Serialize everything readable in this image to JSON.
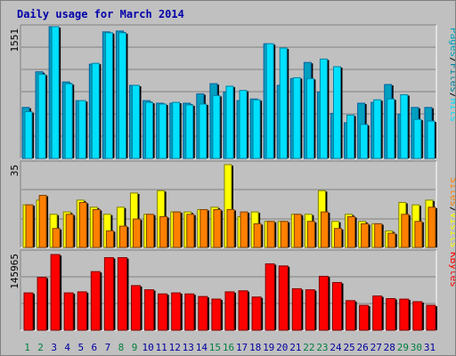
{
  "title": "Daily usage for March 2014",
  "colors": {
    "pages": "#00a0c0",
    "pages_edge": "#0060a0",
    "hits": "#00e0ff",
    "hits_edge": "#0080a0",
    "files": "#0080a0",
    "visits": "#ffff00",
    "visits_edge": "#808000",
    "sites": "#ff8000",
    "sites_edge": "#804000",
    "kbytes": "#ff0000",
    "kbytes_edge": "#800000",
    "weekend_day": "#008040",
    "weekday": "#0000a0",
    "grid": "#808080"
  },
  "chart_data": [
    {
      "type": "bar",
      "categories": [
        "1",
        "2",
        "3",
        "4",
        "5",
        "6",
        "7",
        "8",
        "9",
        "10",
        "11",
        "12",
        "13",
        "14",
        "15",
        "16",
        "17",
        "18",
        "19",
        "20",
        "21",
        "22",
        "23",
        "24",
        "25",
        "26",
        "27",
        "28",
        "29",
        "30",
        "31"
      ],
      "max_label": "1551",
      "legend": [
        "Pages",
        "Files",
        "Hits"
      ],
      "ylim": [
        0,
        1551
      ],
      "series": [
        {
          "name": "Pages",
          "values": [
            600,
            1020,
            1551,
            900,
            680,
            1110,
            1490,
            1500,
            860,
            680,
            650,
            650,
            650,
            760,
            880,
            780,
            680,
            700,
            1350,
            860,
            940,
            1130,
            780,
            530,
            420,
            650,
            660,
            870,
            520,
            600,
            600
          ]
        },
        {
          "name": "Hits",
          "values": [
            550,
            990,
            1551,
            880,
            680,
            1120,
            1480,
            1480,
            860,
            660,
            640,
            660,
            630,
            640,
            740,
            850,
            800,
            690,
            1350,
            1300,
            950,
            940,
            1170,
            1080,
            510,
            400,
            690,
            700,
            750,
            460,
            440
          ]
        }
      ]
    },
    {
      "type": "bar",
      "categories": [
        "1",
        "2",
        "3",
        "4",
        "5",
        "6",
        "7",
        "8",
        "9",
        "10",
        "11",
        "12",
        "13",
        "14",
        "15",
        "16",
        "17",
        "18",
        "19",
        "20",
        "21",
        "22",
        "23",
        "24",
        "25",
        "26",
        "27",
        "28",
        "29",
        "30",
        "31"
      ],
      "max_label": "35",
      "legend": [
        "Sites",
        "Visits"
      ],
      "ylim": [
        0,
        35
      ],
      "series": [
        {
          "name": "Visits",
          "values": [
            18,
            20,
            14,
            15,
            20,
            17,
            14,
            17,
            23,
            14,
            24,
            15,
            15,
            16,
            17,
            35,
            13,
            15,
            11,
            11,
            14,
            14,
            24,
            11,
            14,
            11,
            10,
            7,
            19,
            18,
            20
          ]
        },
        {
          "name": "Sites",
          "values": [
            18,
            22,
            8,
            14,
            19,
            16,
            7,
            9,
            12,
            14,
            13,
            15,
            14,
            16,
            16,
            16,
            15,
            10,
            11,
            11,
            14,
            11,
            15,
            8,
            13,
            10,
            10,
            6,
            14,
            11,
            17
          ]
        }
      ]
    },
    {
      "type": "bar",
      "categories": [
        "1",
        "2",
        "3",
        "4",
        "5",
        "6",
        "7",
        "8",
        "9",
        "10",
        "11",
        "12",
        "13",
        "14",
        "15",
        "16",
        "17",
        "18",
        "19",
        "20",
        "21",
        "22",
        "23",
        "24",
        "25",
        "26",
        "27",
        "28",
        "29",
        "30",
        "31"
      ],
      "max_label": "145965",
      "legend": [
        "KBytes"
      ],
      "ylim": [
        0,
        145965
      ],
      "series": [
        {
          "name": "KBytes",
          "values": [
            72000,
            102000,
            145965,
            72000,
            74000,
            113000,
            140000,
            140000,
            86000,
            78000,
            70000,
            72000,
            70000,
            65000,
            60000,
            74000,
            76000,
            64000,
            128000,
            124000,
            80000,
            78000,
            104000,
            92000,
            57000,
            48000,
            66000,
            61000,
            60000,
            55000,
            48000
          ]
        }
      ]
    }
  ]
}
